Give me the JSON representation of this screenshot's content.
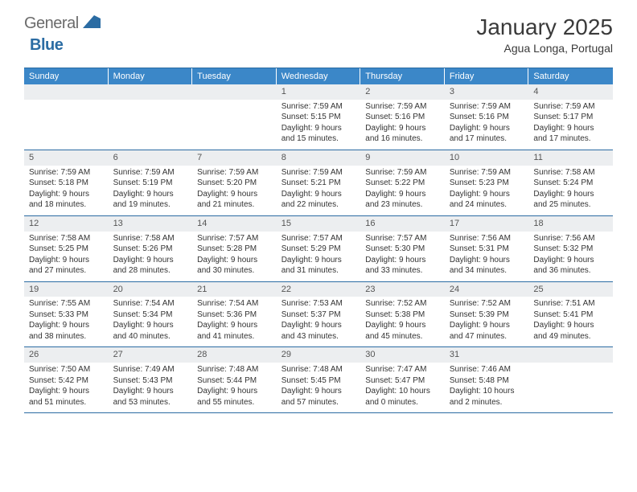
{
  "logo": {
    "general": "General",
    "blue": "Blue"
  },
  "title": "January 2025",
  "location": "Agua Longa, Portugal",
  "weekdays": [
    "Sunday",
    "Monday",
    "Tuesday",
    "Wednesday",
    "Thursday",
    "Friday",
    "Saturday"
  ],
  "colors": {
    "header_bg": "#3b87c8",
    "header_text": "#ffffff",
    "border": "#2b6ca3",
    "daynum_bg": "#eceef0",
    "logo_blue": "#2b6ca3",
    "logo_gray": "#6b6b6b"
  },
  "labels": {
    "sunrise": "Sunrise: ",
    "sunset": "Sunset: ",
    "daylight": "Daylight: "
  },
  "weeks": [
    [
      {
        "n": "",
        "sr": "",
        "ss": "",
        "d1": "",
        "d2": ""
      },
      {
        "n": "",
        "sr": "",
        "ss": "",
        "d1": "",
        "d2": ""
      },
      {
        "n": "",
        "sr": "",
        "ss": "",
        "d1": "",
        "d2": ""
      },
      {
        "n": "1",
        "sr": "7:59 AM",
        "ss": "5:15 PM",
        "d1": "9 hours",
        "d2": "and 15 minutes."
      },
      {
        "n": "2",
        "sr": "7:59 AM",
        "ss": "5:16 PM",
        "d1": "9 hours",
        "d2": "and 16 minutes."
      },
      {
        "n": "3",
        "sr": "7:59 AM",
        "ss": "5:16 PM",
        "d1": "9 hours",
        "d2": "and 17 minutes."
      },
      {
        "n": "4",
        "sr": "7:59 AM",
        "ss": "5:17 PM",
        "d1": "9 hours",
        "d2": "and 17 minutes."
      }
    ],
    [
      {
        "n": "5",
        "sr": "7:59 AM",
        "ss": "5:18 PM",
        "d1": "9 hours",
        "d2": "and 18 minutes."
      },
      {
        "n": "6",
        "sr": "7:59 AM",
        "ss": "5:19 PM",
        "d1": "9 hours",
        "d2": "and 19 minutes."
      },
      {
        "n": "7",
        "sr": "7:59 AM",
        "ss": "5:20 PM",
        "d1": "9 hours",
        "d2": "and 21 minutes."
      },
      {
        "n": "8",
        "sr": "7:59 AM",
        "ss": "5:21 PM",
        "d1": "9 hours",
        "d2": "and 22 minutes."
      },
      {
        "n": "9",
        "sr": "7:59 AM",
        "ss": "5:22 PM",
        "d1": "9 hours",
        "d2": "and 23 minutes."
      },
      {
        "n": "10",
        "sr": "7:59 AM",
        "ss": "5:23 PM",
        "d1": "9 hours",
        "d2": "and 24 minutes."
      },
      {
        "n": "11",
        "sr": "7:58 AM",
        "ss": "5:24 PM",
        "d1": "9 hours",
        "d2": "and 25 minutes."
      }
    ],
    [
      {
        "n": "12",
        "sr": "7:58 AM",
        "ss": "5:25 PM",
        "d1": "9 hours",
        "d2": "and 27 minutes."
      },
      {
        "n": "13",
        "sr": "7:58 AM",
        "ss": "5:26 PM",
        "d1": "9 hours",
        "d2": "and 28 minutes."
      },
      {
        "n": "14",
        "sr": "7:57 AM",
        "ss": "5:28 PM",
        "d1": "9 hours",
        "d2": "and 30 minutes."
      },
      {
        "n": "15",
        "sr": "7:57 AM",
        "ss": "5:29 PM",
        "d1": "9 hours",
        "d2": "and 31 minutes."
      },
      {
        "n": "16",
        "sr": "7:57 AM",
        "ss": "5:30 PM",
        "d1": "9 hours",
        "d2": "and 33 minutes."
      },
      {
        "n": "17",
        "sr": "7:56 AM",
        "ss": "5:31 PM",
        "d1": "9 hours",
        "d2": "and 34 minutes."
      },
      {
        "n": "18",
        "sr": "7:56 AM",
        "ss": "5:32 PM",
        "d1": "9 hours",
        "d2": "and 36 minutes."
      }
    ],
    [
      {
        "n": "19",
        "sr": "7:55 AM",
        "ss": "5:33 PM",
        "d1": "9 hours",
        "d2": "and 38 minutes."
      },
      {
        "n": "20",
        "sr": "7:54 AM",
        "ss": "5:34 PM",
        "d1": "9 hours",
        "d2": "and 40 minutes."
      },
      {
        "n": "21",
        "sr": "7:54 AM",
        "ss": "5:36 PM",
        "d1": "9 hours",
        "d2": "and 41 minutes."
      },
      {
        "n": "22",
        "sr": "7:53 AM",
        "ss": "5:37 PM",
        "d1": "9 hours",
        "d2": "and 43 minutes."
      },
      {
        "n": "23",
        "sr": "7:52 AM",
        "ss": "5:38 PM",
        "d1": "9 hours",
        "d2": "and 45 minutes."
      },
      {
        "n": "24",
        "sr": "7:52 AM",
        "ss": "5:39 PM",
        "d1": "9 hours",
        "d2": "and 47 minutes."
      },
      {
        "n": "25",
        "sr": "7:51 AM",
        "ss": "5:41 PM",
        "d1": "9 hours",
        "d2": "and 49 minutes."
      }
    ],
    [
      {
        "n": "26",
        "sr": "7:50 AM",
        "ss": "5:42 PM",
        "d1": "9 hours",
        "d2": "and 51 minutes."
      },
      {
        "n": "27",
        "sr": "7:49 AM",
        "ss": "5:43 PM",
        "d1": "9 hours",
        "d2": "and 53 minutes."
      },
      {
        "n": "28",
        "sr": "7:48 AM",
        "ss": "5:44 PM",
        "d1": "9 hours",
        "d2": "and 55 minutes."
      },
      {
        "n": "29",
        "sr": "7:48 AM",
        "ss": "5:45 PM",
        "d1": "9 hours",
        "d2": "and 57 minutes."
      },
      {
        "n": "30",
        "sr": "7:47 AM",
        "ss": "5:47 PM",
        "d1": "10 hours",
        "d2": "and 0 minutes."
      },
      {
        "n": "31",
        "sr": "7:46 AM",
        "ss": "5:48 PM",
        "d1": "10 hours",
        "d2": "and 2 minutes."
      },
      {
        "n": "",
        "sr": "",
        "ss": "",
        "d1": "",
        "d2": ""
      }
    ]
  ]
}
